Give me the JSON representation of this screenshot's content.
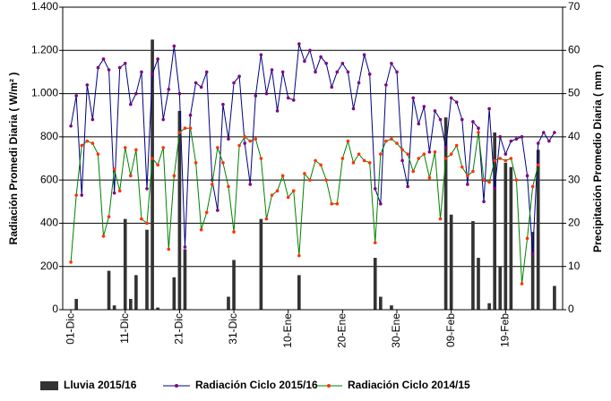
{
  "chart_data": {
    "type": "bar_line",
    "y_label": "Radiación Promedi Diaria ( W/m² )",
    "y2_label": "Precipitación Promedio Diaria ( mm )",
    "categories": [
      null,
      "01-Dic",
      null,
      null,
      null,
      null,
      null,
      null,
      null,
      null,
      null,
      "11-Dic",
      null,
      null,
      null,
      null,
      null,
      null,
      null,
      null,
      null,
      "21-Dic",
      null,
      null,
      null,
      null,
      null,
      null,
      null,
      null,
      null,
      "31-Dic",
      null,
      null,
      null,
      null,
      null,
      null,
      null,
      null,
      null,
      "10-Ene",
      null,
      null,
      null,
      null,
      null,
      null,
      null,
      null,
      null,
      "20-Ene",
      null,
      null,
      null,
      null,
      null,
      null,
      null,
      null,
      null,
      "30-Ene",
      null,
      null,
      null,
      null,
      null,
      null,
      null,
      null,
      null,
      "09-Feb",
      null,
      null,
      null,
      null,
      null,
      null,
      null,
      null,
      null,
      "19-Feb",
      null,
      null,
      null,
      null,
      null,
      null,
      null,
      null,
      null,
      null
    ],
    "ylim": [
      0,
      1400
    ],
    "yticks": [
      0,
      200,
      400,
      600,
      800,
      {
        "value": 1000,
        "label": "1.000"
      },
      {
        "value": 1200,
        "label": "1.200"
      },
      {
        "value": 1400,
        "label": "1.400"
      }
    ],
    "y2lim": [
      0,
      70
    ],
    "y2ticks": [
      0,
      10,
      20,
      30,
      40,
      50,
      60,
      70
    ],
    "grid": true,
    "legend": "bottom",
    "series": [
      {
        "name": "Lluvia 2015/16",
        "kind": "bar",
        "axis": "y2",
        "color": "#333333",
        "values": [
          0,
          0,
          2.5,
          0,
          0,
          0,
          0,
          0,
          9,
          1,
          0,
          21,
          2.5,
          8,
          0,
          18.5,
          62.5,
          0.5,
          0,
          0,
          7.5,
          46,
          14,
          0,
          0,
          0,
          0,
          0,
          0,
          0,
          3,
          11.5,
          0,
          0,
          0,
          0,
          21,
          0,
          0,
          0,
          0,
          0,
          0,
          8,
          0,
          0,
          0,
          0,
          0,
          0,
          0,
          0,
          0,
          0,
          0,
          0,
          0,
          12,
          3,
          0,
          1,
          0,
          0,
          0,
          0,
          0,
          0,
          0,
          0,
          0,
          44.5,
          22,
          0,
          0,
          0,
          20.5,
          12,
          0,
          1.5,
          41,
          10,
          34,
          33,
          0,
          0,
          0,
          18,
          37,
          0,
          0,
          5.5,
          0
        ]
      },
      {
        "name": "Radiación Ciclo 2015/16",
        "kind": "line",
        "color": "#000080",
        "marker_color": "#800080",
        "values": [
          null,
          850,
          990,
          530,
          1040,
          880,
          1120,
          1160,
          1110,
          540,
          1120,
          1140,
          950,
          1000,
          1100,
          560,
          1090,
          1160,
          880,
          1020,
          1220,
          1000,
          290,
          900,
          1050,
          1030,
          1100,
          600,
          460,
          950,
          790,
          1050,
          1080,
          770,
          580,
          990,
          1180,
          1000,
          1110,
          920,
          1100,
          980,
          970,
          1230,
          1150,
          1200,
          1100,
          1170,
          1140,
          1030,
          1100,
          1140,
          1100,
          930,
          1050,
          1180,
          1090,
          560,
          490,
          1040,
          1140,
          1100,
          690,
          570,
          980,
          860,
          940,
          730,
          920,
          880,
          750,
          980,
          960,
          880,
          580,
          870,
          840,
          500,
          930,
          560,
          800,
          720,
          780,
          790,
          800,
          620,
          260,
          770,
          820,
          780,
          820,
          null
        ]
      },
      {
        "name": "Radiación Ciclo 2014/15",
        "kind": "line",
        "color": "#008000",
        "marker_color": "#ff3300",
        "values": [
          null,
          220,
          530,
          760,
          780,
          770,
          720,
          340,
          430,
          650,
          550,
          750,
          620,
          740,
          420,
          400,
          700,
          670,
          750,
          280,
          620,
          820,
          840,
          840,
          680,
          370,
          450,
          580,
          750,
          680,
          570,
          360,
          760,
          800,
          780,
          790,
          700,
          420,
          530,
          550,
          620,
          520,
          550,
          250,
          630,
          600,
          690,
          670,
          600,
          490,
          490,
          700,
          780,
          680,
          720,
          690,
          680,
          310,
          720,
          780,
          790,
          770,
          740,
          720,
          640,
          700,
          720,
          610,
          730,
          420,
          700,
          720,
          760,
          660,
          620,
          640,
          820,
          600,
          590,
          690,
          700,
          690,
          700,
          600,
          120,
          330,
          570,
          670,
          null,
          null,
          null,
          null
        ]
      }
    ]
  }
}
